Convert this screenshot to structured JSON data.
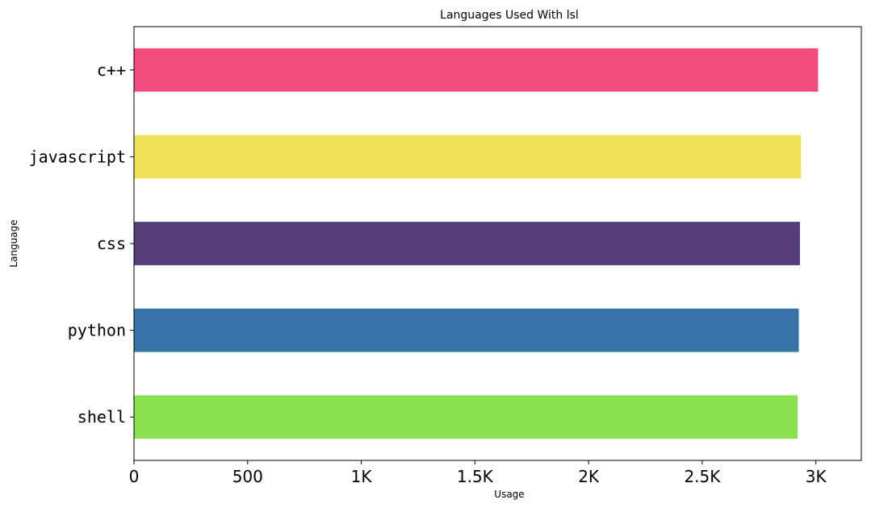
{
  "chart_data": {
    "type": "bar",
    "orientation": "horizontal",
    "title": "Languages Used With lsl",
    "xlabel": "Usage",
    "ylabel": "Language",
    "categories": [
      "c++",
      "javascript",
      "css",
      "python",
      "shell"
    ],
    "values": [
      3010,
      2935,
      2930,
      2925,
      2920
    ],
    "colors": [
      "#f34b7d",
      "#f1e05a",
      "#563d7c",
      "#3572a5",
      "#89e051"
    ],
    "xlim": [
      0,
      3200
    ],
    "xticks": [
      0,
      500,
      1000,
      1500,
      2000,
      2500,
      3000
    ],
    "xtick_labels": [
      "0",
      "500",
      "1K",
      "1.5K",
      "2K",
      "2.5K",
      "3K"
    ],
    "grid": false,
    "legend": "none"
  }
}
